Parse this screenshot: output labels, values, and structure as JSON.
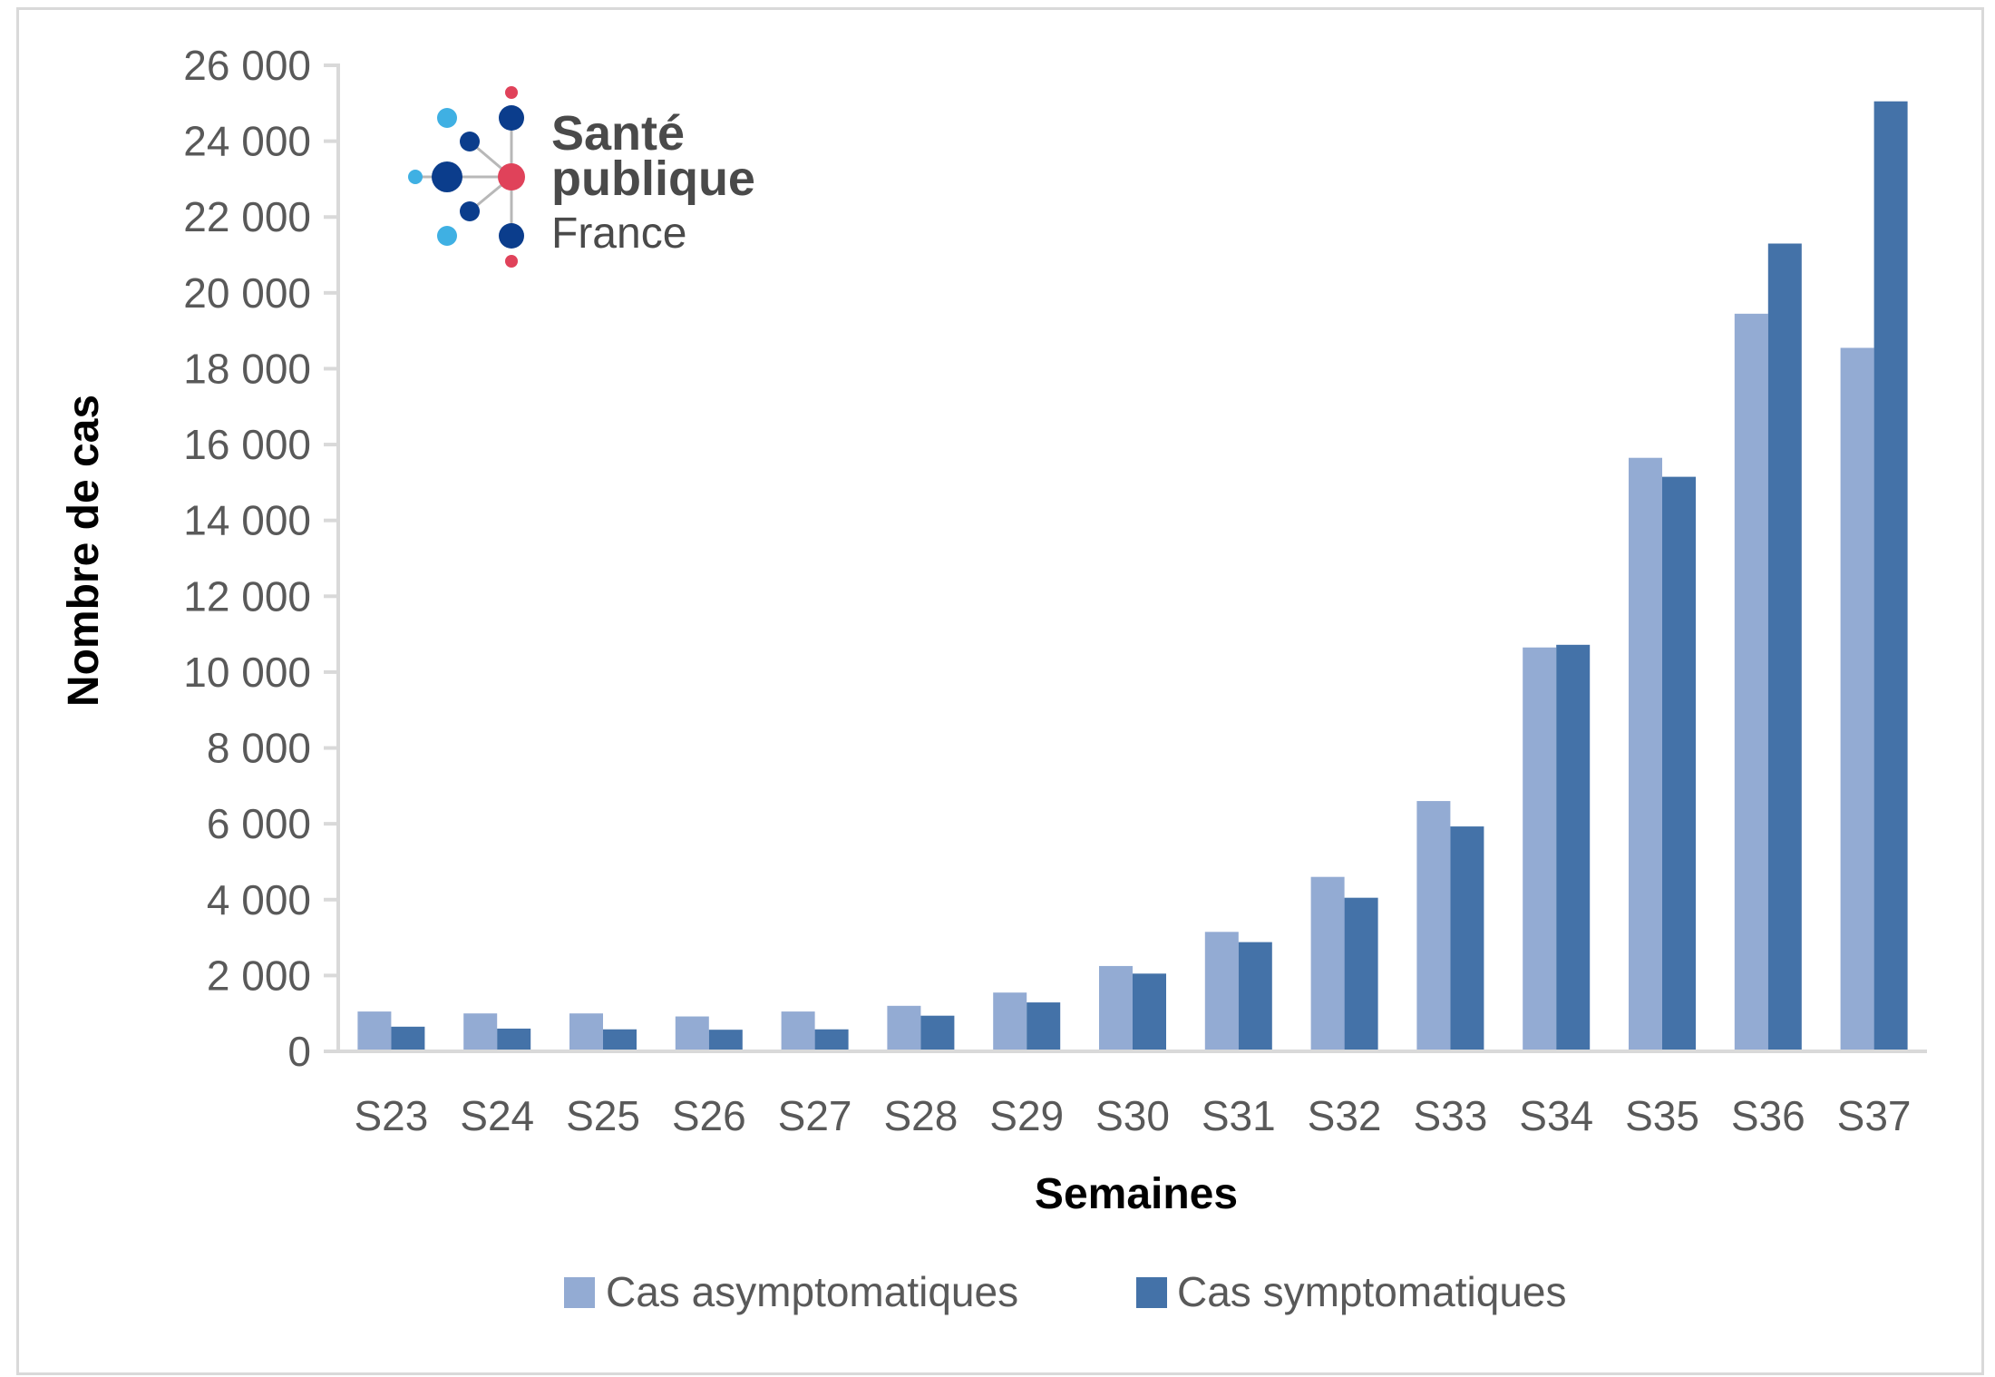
{
  "logo": {
    "line1": "Santé",
    "line2": "publique",
    "line3": "France",
    "colors": {
      "dark_blue": "#0b3d8c",
      "light_blue": "#3fb0e3",
      "red": "#e0425a",
      "spoke": "#b8b8b8"
    }
  },
  "chart_data": {
    "type": "bar",
    "title": "",
    "xlabel": "Semaines",
    "ylabel": "Nombre de cas",
    "ylim": [
      0,
      26000
    ],
    "yticks": [
      0,
      2000,
      4000,
      6000,
      8000,
      10000,
      12000,
      14000,
      16000,
      18000,
      20000,
      22000,
      24000,
      26000
    ],
    "ytick_labels": [
      "0",
      "2 000",
      "4 000",
      "6 000",
      "8 000",
      "10 000",
      "12 000",
      "14 000",
      "16 000",
      "18 000",
      "20 000",
      "22 000",
      "24 000",
      "26 000"
    ],
    "grid": false,
    "legend_position": "bottom",
    "categories": [
      "S23",
      "S24",
      "S25",
      "S26",
      "S27",
      "S28",
      "S29",
      "S30",
      "S31",
      "S32",
      "S33",
      "S34",
      "S35",
      "S36",
      "S37"
    ],
    "series": [
      {
        "name": "Cas asymptomatiques",
        "color": "#93abd3",
        "values": [
          1050,
          1000,
          1000,
          920,
          1050,
          1200,
          1550,
          2250,
          3150,
          4600,
          6600,
          10650,
          15650,
          19450,
          18550
        ]
      },
      {
        "name": "Cas symptomatiques",
        "color": "#4472a8",
        "values": [
          650,
          600,
          580,
          570,
          580,
          940,
          1290,
          2050,
          2880,
          4050,
          5930,
          10720,
          15150,
          21300,
          25050
        ]
      }
    ],
    "colors": {
      "axis": "#d9d9d9"
    }
  }
}
